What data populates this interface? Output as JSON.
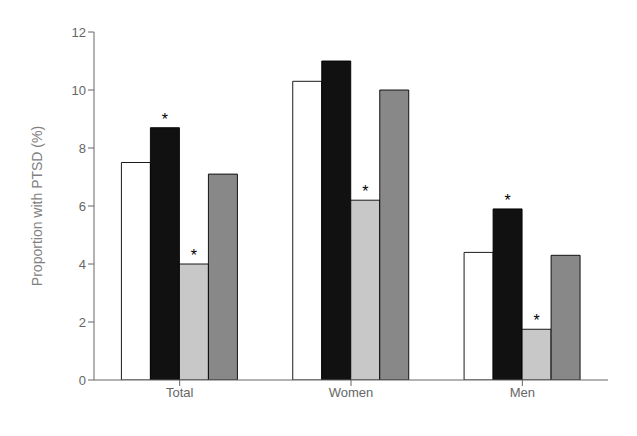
{
  "chart_data": {
    "type": "bar",
    "categories": [
      "Total",
      "Women",
      "Men"
    ],
    "series": [
      {
        "color": "#ffffff",
        "values": [
          7.5,
          10.3,
          4.4
        ]
      },
      {
        "color": "#111111",
        "values": [
          8.7,
          11.0,
          5.9
        ],
        "annotations": [
          "*",
          null,
          "*"
        ]
      },
      {
        "color": "#c8c8c8",
        "values": [
          4.0,
          6.2,
          1.75
        ],
        "annotations": [
          "*",
          "*",
          "*"
        ]
      },
      {
        "color": "#888888",
        "values": [
          7.1,
          10.0,
          4.3
        ]
      }
    ],
    "ylabel": "Proportion with PTSD (%)",
    "ylim": [
      0,
      12
    ],
    "yticks": [
      0,
      2,
      4,
      6,
      8,
      10,
      12
    ],
    "grid": false
  }
}
